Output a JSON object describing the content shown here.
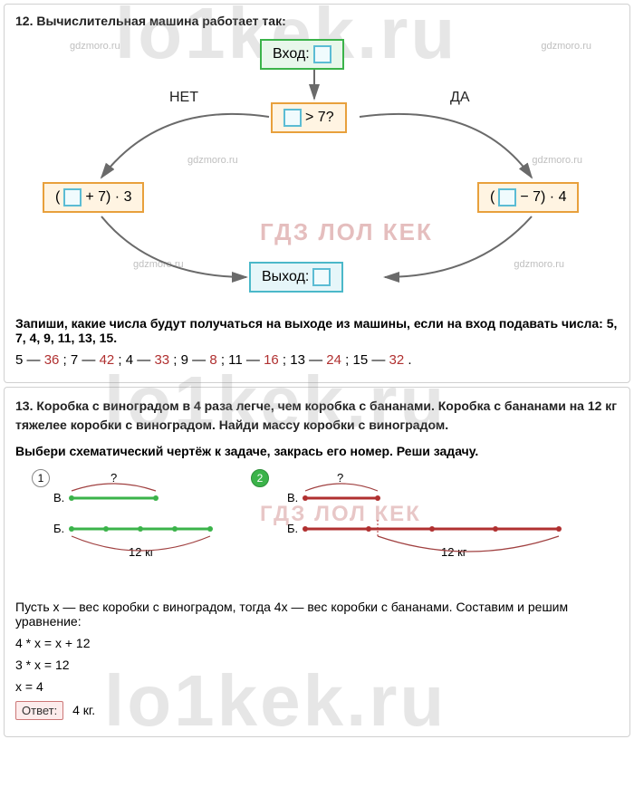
{
  "watermark_small": "gdzmoro.ru",
  "watermark_big": "lo1kek.ru",
  "watermark_mid": "ГДЗ ЛОЛ КЕК",
  "p12": {
    "title": "12. Вычислительная машина работает так:",
    "input_label": "Вход:",
    "output_label": "Выход:",
    "cond": "> 7?",
    "no_label": "НЕТ",
    "yes_label": "ДА",
    "left_expr_a": "(",
    "left_expr_b": " + 7) · 3",
    "right_expr_a": "(",
    "right_expr_b": " − 7) · 4",
    "question": "Запиши, какие числа будут получаться на выходе из машины, если на вход подавать числа: 5, 7, 4, 9, 11, 13, 15.",
    "answer_pairs": [
      {
        "in": "5",
        "out": "36"
      },
      {
        "in": "7",
        "out": "42"
      },
      {
        "in": "4",
        "out": "33"
      },
      {
        "in": "9",
        "out": "8"
      },
      {
        "in": "11",
        "out": "16"
      },
      {
        "in": "13",
        "out": "24"
      },
      {
        "in": "15",
        "out": "32"
      }
    ]
  },
  "p13": {
    "title": "13. Коробка с виноградом в 4 раза легче, чем коробка с бананами. Коробка с бананами на 12 кг тяжелее коробки с виноградом. Найди массу коробки с виноградом.",
    "subtitle": "Выбери схематический чертёж к задаче, закрась его номер. Реши задачу.",
    "scheme1_num": "1",
    "scheme2_num": "2",
    "label_v": "В.",
    "label_b": "Б.",
    "qmark": "?",
    "weight_label": "12  кг",
    "solution": [
      "Пусть x — вес коробки с виноградом, тогда 4x — вес коробки с бананами. Составим и решим уравнение:",
      "4 * x = x + 12",
      "3 * x = 12",
      "x = 4"
    ],
    "answer_label": "Ответ:",
    "answer_value": "4 кг."
  },
  "colors": {
    "arrow": "#6a6a6a",
    "green_line": "#3bb34a",
    "red_line": "#b03030",
    "tick": "#b03030"
  }
}
